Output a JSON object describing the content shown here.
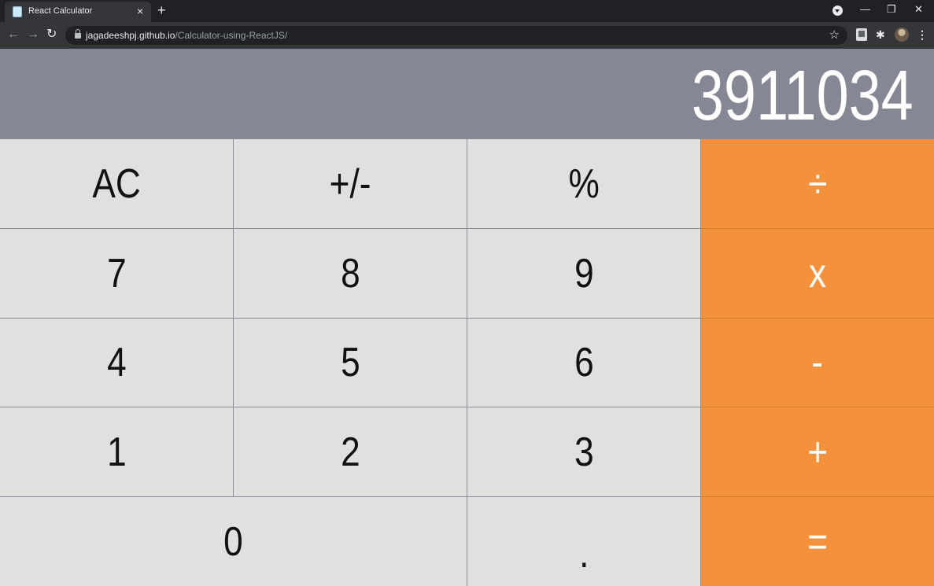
{
  "browser": {
    "tab_title": "React Calculator",
    "tab_close": "×",
    "new_tab": "+",
    "url_host": "jagadeeshpj.github.io",
    "url_path": "/Calculator-using-ReactJS/",
    "back_icon": "←",
    "forward_icon": "→",
    "reload_icon": "↻",
    "star_icon": "☆",
    "minimize_icon": "—",
    "restore_icon": "❐",
    "close_icon": "✕",
    "menu_icon": "⋮",
    "extensions_icon": "✱"
  },
  "calculator": {
    "display": "3911034",
    "keys": {
      "ac": "AC",
      "sign": "+/-",
      "percent": "%",
      "divide": "÷",
      "seven": "7",
      "eight": "8",
      "nine": "9",
      "multiply": "x",
      "four": "4",
      "five": "5",
      "six": "6",
      "subtract": "-",
      "one": "1",
      "two": "2",
      "three": "3",
      "add": "+",
      "zero": "0",
      "decimal": ".",
      "equals": "="
    }
  },
  "colors": {
    "display_bg": "#858794",
    "key_bg": "#e0e0e0",
    "operator_bg": "#f3913d",
    "key_border": "#8a8e9c"
  }
}
